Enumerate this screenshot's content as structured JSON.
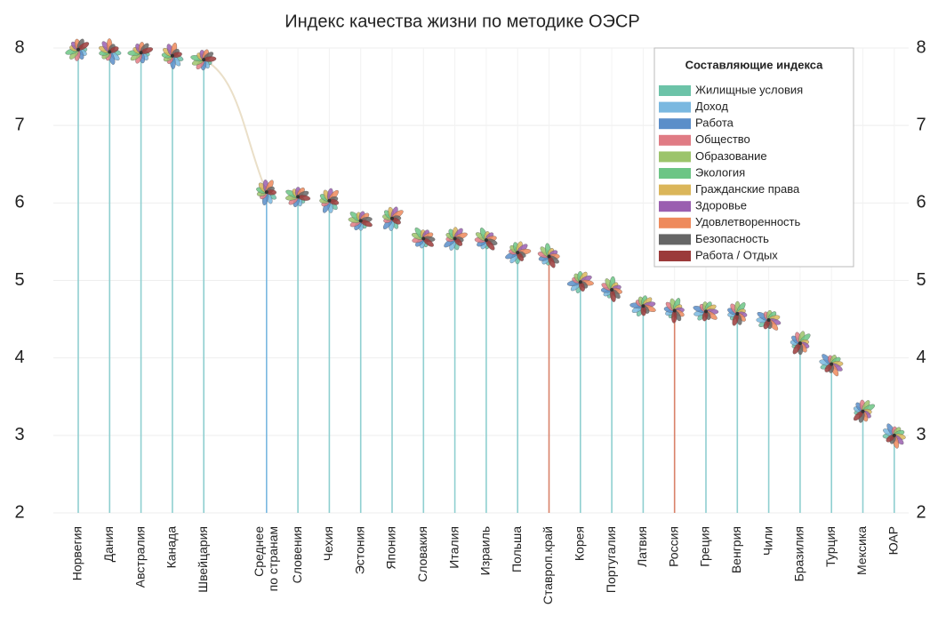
{
  "chart_data": {
    "type": "flower-lollipop",
    "title": "Индекс качества жизни по методике ОЭСР",
    "categories": [
      "Норвегия",
      "Дания",
      "Австралия",
      "Канада",
      "Швейцария",
      "Среднее по странам",
      "Словения",
      "Чехия",
      "Эстония",
      "Япония",
      "Словакия",
      "Италия",
      "Израиль",
      "Польша",
      "Ставроп.край",
      "Корея",
      "Португалия",
      "Латвия",
      "Россия",
      "Греция",
      "Венгрия",
      "Чили",
      "Бразилия",
      "Турция",
      "Мексика",
      "ЮАР"
    ],
    "values": [
      7.98,
      7.95,
      7.94,
      7.9,
      7.85,
      6.14,
      6.08,
      6.03,
      5.77,
      5.8,
      5.54,
      5.54,
      5.52,
      5.36,
      5.31,
      4.98,
      4.88,
      4.67,
      4.61,
      4.6,
      4.57,
      4.49,
      4.19,
      3.92,
      3.31,
      3.0
    ],
    "colors": [
      "#8fcfd0",
      "#8fcfd0",
      "#8fcfd0",
      "#8fcfd0",
      "#8fcfd0",
      "#7ab8e0",
      "#8fcfd0",
      "#8fcfd0",
      "#8fcfd0",
      "#8fcfd0",
      "#8fcfd0",
      "#8fcfd0",
      "#8fcfd0",
      "#8fcfd0",
      "#d9826a",
      "#8fcfd0",
      "#8fcfd0",
      "#8fcfd0",
      "#d9826a",
      "#8fcfd0",
      "#8fcfd0",
      "#8fcfd0",
      "#8fcfd0",
      "#8fcfd0",
      "#8fcfd0",
      "#8fcfd0"
    ],
    "ylim": [
      2,
      8
    ],
    "yticks": [
      2,
      3,
      4,
      5,
      6,
      7,
      8
    ],
    "grid": true,
    "legend": {
      "title": "Составляющие индекса",
      "position": "upper right",
      "items": [
        {
          "name": "Жилищные условия",
          "color": "#6cc3a8"
        },
        {
          "name": "Доход",
          "color": "#7ab8e0"
        },
        {
          "name": "Работа",
          "color": "#5b8ec9"
        },
        {
          "name": "Общество",
          "color": "#e07b84"
        },
        {
          "name": "Образование",
          "color": "#9cc46b"
        },
        {
          "name": "Экология",
          "color": "#6cc585"
        },
        {
          "name": "Гражданские права",
          "color": "#dbb65a"
        },
        {
          "name": "Здоровье",
          "color": "#9a5fb0"
        },
        {
          "name": "Удовлетворенность",
          "color": "#ee8a5c"
        },
        {
          "name": "Безопасность",
          "color": "#666666"
        },
        {
          "name": "Работа / Отдых",
          "color": "#9b3a3a"
        }
      ]
    }
  }
}
